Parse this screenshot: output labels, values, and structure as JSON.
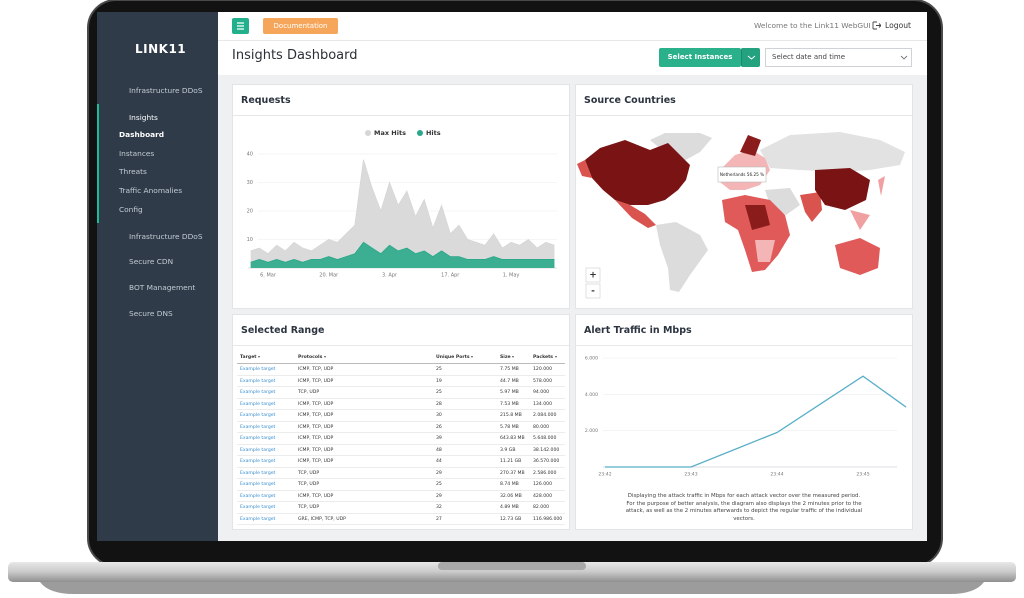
{
  "sidebar": {
    "logo": "LINK11",
    "items": [
      {
        "label": "Infrastructure DDoS"
      },
      {
        "label": "Insights",
        "children": [
          "Dashboard",
          "Instances",
          "Threats",
          "Traffic Anomalies",
          "Config"
        ]
      },
      {
        "label": "Infrastructure DDoS"
      },
      {
        "label": "Secure CDN"
      },
      {
        "label": "BOT Management"
      },
      {
        "label": "Secure DNS"
      }
    ]
  },
  "topbar": {
    "documentation": "Documentation",
    "welcome": "Welcome to the Link11 WebGUI",
    "logout": "Logout"
  },
  "header": {
    "title": "Insights Dashboard",
    "select_instances": "Select Instances",
    "date_select": "Select date and time"
  },
  "chart_data": [
    {
      "type": "area",
      "title": "Requests",
      "categories": [
        null,
        null,
        "6. Mar",
        null,
        null,
        null,
        null,
        null,
        null,
        "20. Mar",
        null,
        null,
        null,
        null,
        null,
        null,
        "3. Apr",
        null,
        null,
        null,
        null,
        null,
        null,
        "17. Apr",
        null,
        null,
        null,
        null,
        null,
        null,
        "1. May",
        null,
        null,
        null,
        null,
        null
      ],
      "series": [
        {
          "name": "Max Hits",
          "color": "#d6d6d6",
          "values": [
            6,
            7,
            5,
            8,
            6,
            9,
            7,
            6,
            8,
            10,
            9,
            12,
            15,
            38,
            28,
            20,
            30,
            22,
            27,
            18,
            24,
            14,
            22,
            12,
            15,
            10,
            9,
            8,
            12,
            7,
            9,
            8,
            10,
            7,
            9,
            8
          ]
        },
        {
          "name": "Hits",
          "color": "#2aa889",
          "values": [
            2,
            3,
            2,
            3,
            2,
            3,
            2,
            3,
            3,
            4,
            3,
            4,
            5,
            9,
            7,
            5,
            8,
            6,
            7,
            5,
            6,
            4,
            6,
            4,
            4,
            3,
            3,
            3,
            4,
            3,
            3,
            3,
            3,
            3,
            3,
            3
          ]
        }
      ],
      "ylim": [
        0,
        40
      ],
      "yticks": [
        10,
        20,
        30,
        40
      ],
      "grid": true,
      "legend": "top"
    },
    {
      "type": "line",
      "title": "Alert Traffic in Mbps",
      "categories": [
        "23:42",
        null,
        "23:43",
        null,
        "23:44",
        null,
        "23:45",
        null
      ],
      "values": [
        0,
        0,
        0,
        950,
        1900,
        3450,
        5000,
        3300
      ],
      "color": "#5aafc8",
      "ylim": [
        0,
        6000
      ],
      "yticks": [
        {
          "value": 2000,
          "label": "2.000"
        },
        {
          "value": 4000,
          "label": "4.000"
        },
        {
          "value": 6000,
          "label": "6.000"
        }
      ],
      "grid": true,
      "caption": "Displaying the attack traffic in Mbps for each attack vector over the measured period. For the purpose of better analysis, the diagram also displays the 2 minutes prior to the attack, as well as the 2 minutes afterwards to depict the regular traffic of the individual vectors."
    }
  ],
  "map": {
    "title": "Source Countries",
    "tooltip": "Netherlands 56.25 %",
    "zoom_in": "+",
    "zoom_out": "-"
  },
  "table": {
    "title": "Selected Range",
    "columns": [
      "Target",
      "Protocols",
      "Unique Ports",
      "Size",
      "Packets"
    ],
    "rows": [
      [
        "Example target",
        "ICMP, TCP, UDP",
        25,
        "7.75 MB",
        "120.000"
      ],
      [
        "Example target",
        "ICMP, TCP, UDP",
        19,
        "44.7 MB",
        "578.000"
      ],
      [
        "Example target",
        "TCP, UDP",
        25,
        "5.97 MB",
        "94.000"
      ],
      [
        "Example target",
        "ICMP, TCP, UDP",
        28,
        "7.53 MB",
        "134.000"
      ],
      [
        "Example target",
        "ICMP, TCP, UDP",
        30,
        "215.8 MB",
        "2.084.000"
      ],
      [
        "Example target",
        "ICMP, TCP, UDP",
        26,
        "5.78 MB",
        "80.000"
      ],
      [
        "Example target",
        "ICMP, TCP, UDP",
        39,
        "643.83 MB",
        "5.648.000"
      ],
      [
        "Example target",
        "ICMP, TCP, UDP",
        48,
        "3.9 GB",
        "38.142.000"
      ],
      [
        "Example target",
        "ICMP, TCP, UDP",
        44,
        "11.21 GB",
        "36.570.000"
      ],
      [
        "Example target",
        "TCP, UDP",
        29,
        "270.37 MB",
        "2.586.000"
      ],
      [
        "Example target",
        "TCP, UDP",
        25,
        "8.74 MB",
        "126.000"
      ],
      [
        "Example target",
        "ICMP, TCP, UDP",
        29,
        "32.06 MB",
        "428.000"
      ],
      [
        "Example target",
        "TCP, UDP",
        32,
        "4.89 MB",
        "82.000"
      ],
      [
        "Example target",
        "GRE, ICMP, TCP, UDP",
        27,
        "12.73 GB",
        "116.986.000"
      ]
    ]
  }
}
